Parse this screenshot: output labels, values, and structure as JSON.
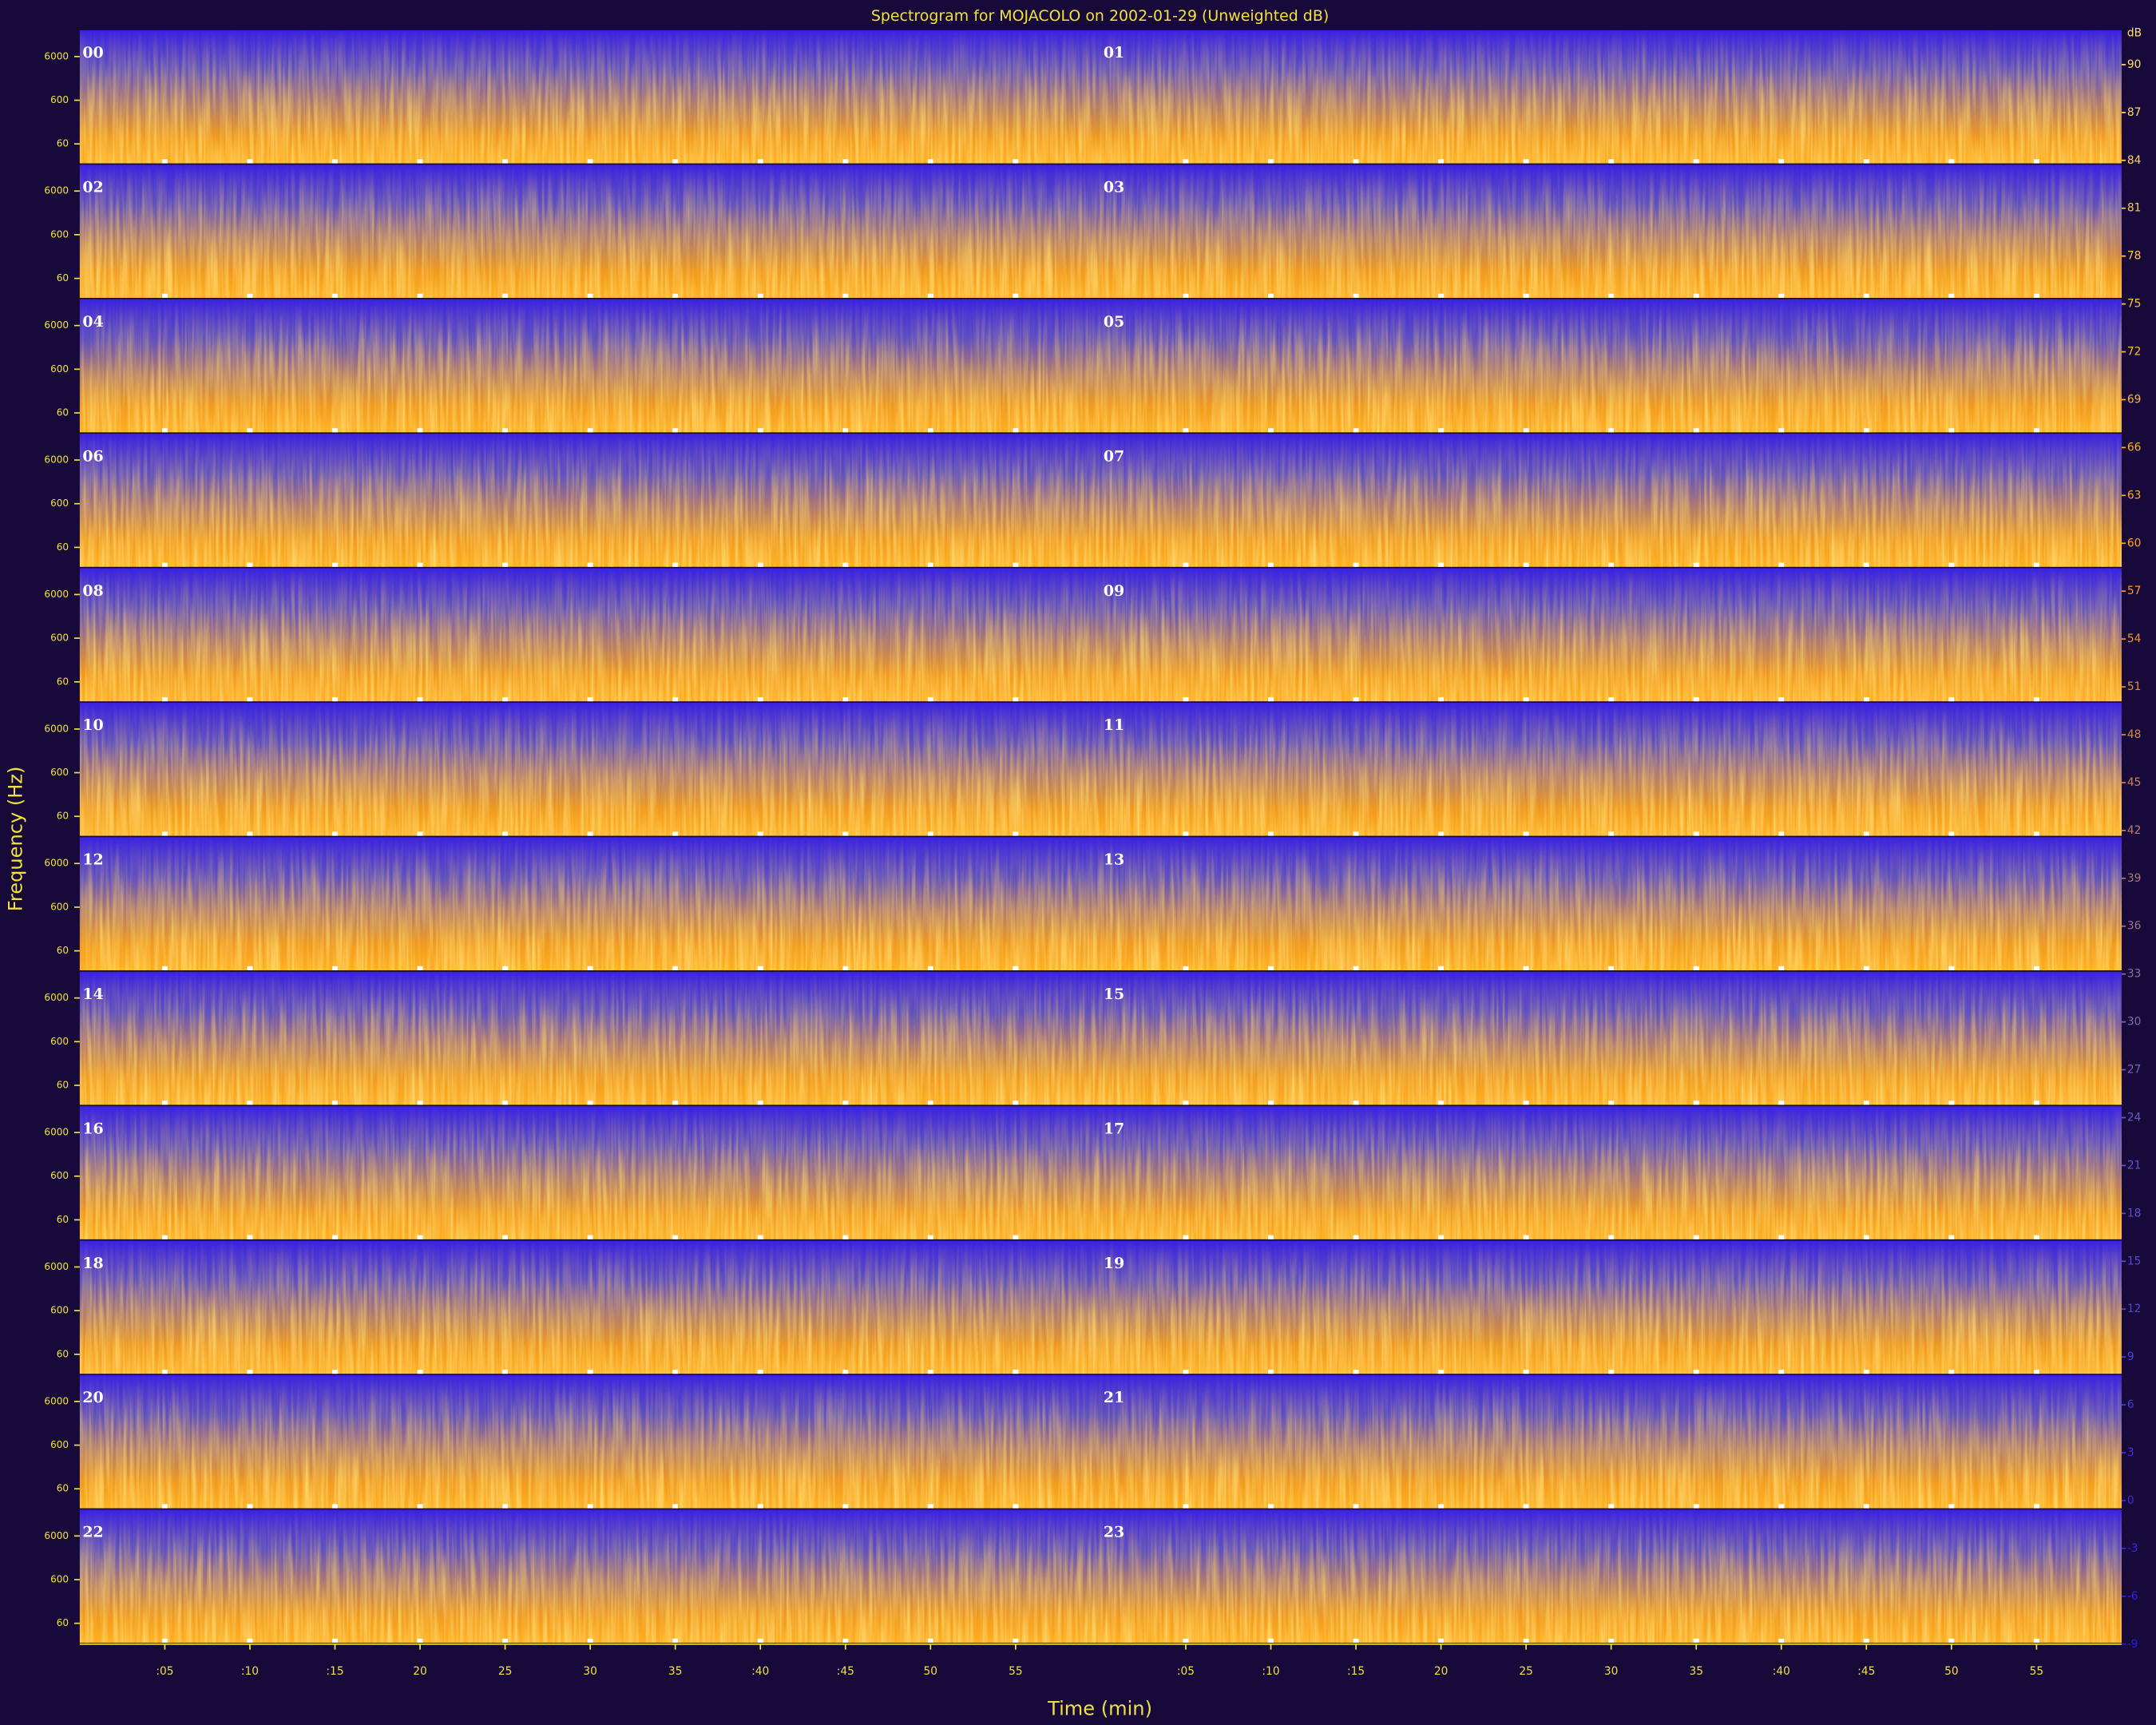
{
  "chart_data": {
    "type": "spectrogram",
    "title": "Spectrogram for MOJACOLO on 2002-01-29 (Unweighted dB)",
    "xlabel": "Time (min)",
    "ylabel": "Frequency (Hz)",
    "hours": [
      "00",
      "01",
      "02",
      "03",
      "04",
      "05",
      "06",
      "07",
      "08",
      "09",
      "10",
      "11",
      "12",
      "13",
      "14",
      "15",
      "16",
      "17",
      "18",
      "19",
      "20",
      "21",
      "22",
      "23"
    ],
    "xlim": [
      0,
      60
    ],
    "xticks": [
      {
        "value": 5,
        "label": ":05"
      },
      {
        "value": 10,
        "label": ":10"
      },
      {
        "value": 15,
        "label": ":15"
      },
      {
        "value": 20,
        "label": "20"
      },
      {
        "value": 25,
        "label": "25"
      },
      {
        "value": 30,
        "label": "30"
      },
      {
        "value": 35,
        "label": "35"
      },
      {
        "value": 40,
        "label": ":40"
      },
      {
        "value": 45,
        "label": ":45"
      },
      {
        "value": 50,
        "label": "50"
      },
      {
        "value": 55,
        "label": "55"
      }
    ],
    "ylim": [
      20,
      24000
    ],
    "yticks": [
      60,
      600,
      6000
    ],
    "log_y": true,
    "colorbar": {
      "label": "dB",
      "clim": [
        -9,
        90
      ],
      "ticks": [
        90,
        87,
        84,
        81,
        78,
        75,
        72,
        69,
        66,
        63,
        60,
        57,
        54,
        51,
        48,
        45,
        42,
        39,
        36,
        33,
        30,
        27,
        24,
        21,
        18,
        15,
        12,
        9,
        6,
        3,
        0,
        -3,
        -6,
        -9
      ],
      "colormap": [
        "#2a1cf0",
        "#6a5ac8",
        "#ff9a10",
        "#ffe060"
      ]
    }
  }
}
